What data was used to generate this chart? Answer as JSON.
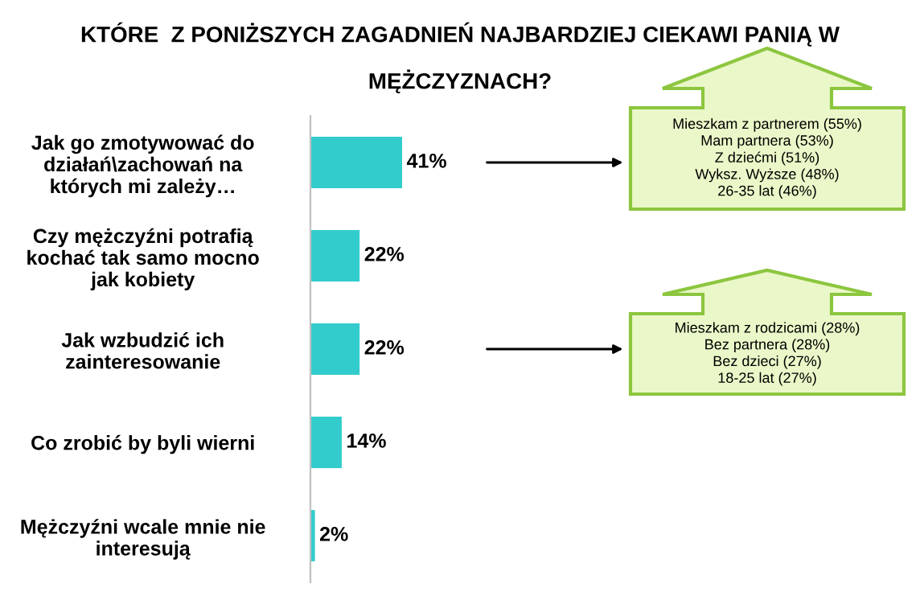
{
  "chart_data": {
    "type": "bar",
    "orientation": "horizontal",
    "title": "KTÓRE  Z PONIŻSZYCH ZAGADNIEŃ NAJBARDZIEJ CIEKAWI PANIĄ W\nMĘŻCZYZNACH?",
    "categories": [
      "Jak go zmotywować do\ndziałań\\zachowań na\nktórych mi zależy…",
      "Czy mężczyźni potrafią\nkochać tak samo mocno\njak kobiety",
      "Jak wzbudzić ich\nzainteresowanie",
      "Co zrobić by byli wierni",
      "Mężczyźni wcale mnie nie\ninteresują"
    ],
    "values": [
      41,
      22,
      22,
      14,
      2
    ],
    "value_labels": [
      "41%",
      "22%",
      "22%",
      "14%",
      "2%"
    ],
    "color": "#33cccc",
    "annotations": [
      "Mieszkam z partnerem (55%)\nMam partnera (53%)\nZ dziećmi (51%)\nWyksz. Wyższe (48%)\n26-35 lat (46%)",
      "Mieszkam z rodzicami (28%)\nBez partnera (28%)\nBez dzieci (27%)\n18-25 lat (27%)"
    ]
  }
}
